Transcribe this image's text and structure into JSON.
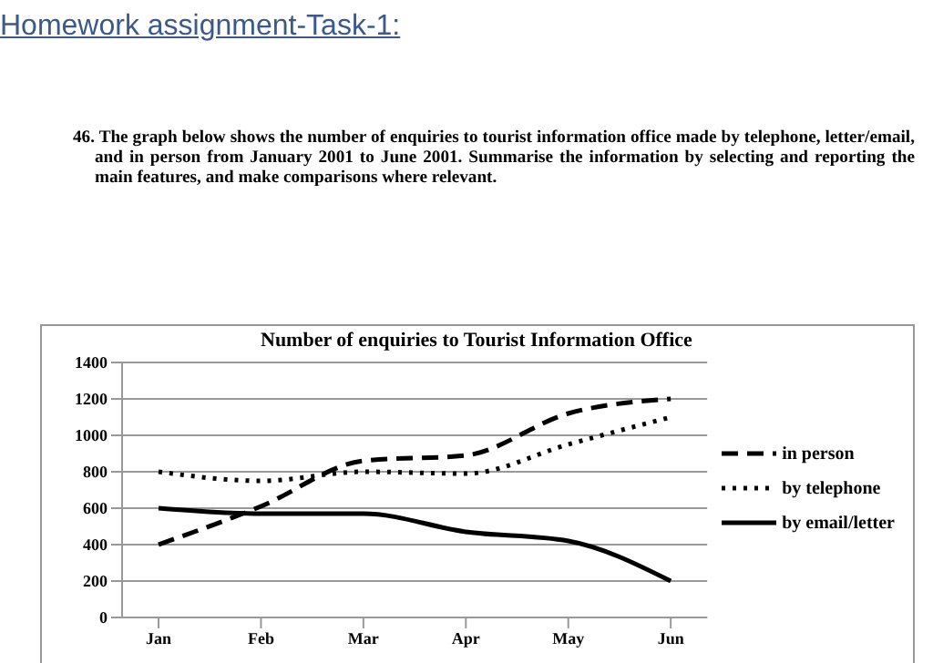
{
  "chart_data": {
    "type": "line",
    "title": "Number of enquiries to Tourist Information Office",
    "annotations": [
      "Homework assignment-Task-1:",
      "46. The graph below shows the number of enquiries to tourist information office made by telephone, letter/email, and in person from January 2001 to June 2001. Summarise the information by selecting and reporting the main features, and make comparisons where relevant."
    ],
    "categories": [
      "Jan",
      "Feb",
      "Mar",
      "Apr",
      "May",
      "Jun"
    ],
    "series": [
      {
        "name": "in person",
        "color": "#000000",
        "line_style": "dashed",
        "values": [
          400,
          610,
          860,
          890,
          1120,
          1200
        ]
      },
      {
        "name": "by telephone",
        "color": "#000000",
        "line_style": "dotted",
        "values": [
          800,
          750,
          800,
          790,
          950,
          1100
        ]
      },
      {
        "name": "by email/letter",
        "color": "#000000",
        "line_style": "solid",
        "values": [
          600,
          570,
          570,
          470,
          420,
          200
        ]
      }
    ],
    "ylim": [
      0,
      1400
    ],
    "yticks": [
      0,
      200,
      400,
      600,
      800,
      1000,
      1200,
      1400
    ],
    "grid": "y",
    "legend": "right",
    "marker": "none"
  }
}
